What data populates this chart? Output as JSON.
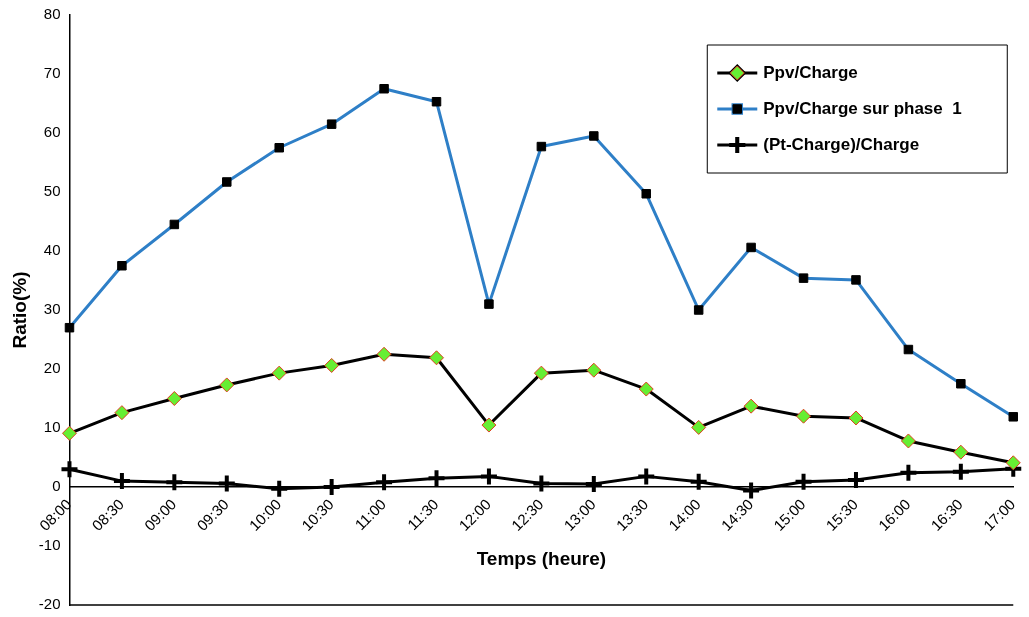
{
  "chart_data": {
    "type": "line",
    "xlabel": "Temps (heure)",
    "ylabel": "Ratio(%)",
    "categories": [
      "08:00",
      "08:30",
      "09:00",
      "09:30",
      "10:00",
      "10:30",
      "11:00",
      "11:30",
      "12:00",
      "12:30",
      "13:00",
      "13:30",
      "14:00",
      "14:30",
      "15:00",
      "15:30",
      "16:00",
      "16:30",
      "17:00"
    ],
    "series": [
      {
        "name": "Ppv/Charge",
        "color": "#66ee33",
        "marker": "diamond",
        "values": [
          9.1,
          12.6,
          15,
          17.3,
          19.3,
          20.6,
          22.5,
          21.9,
          10.5,
          19.3,
          19.8,
          16.6,
          10.1,
          13.7,
          12,
          11.7,
          7.8,
          5.9,
          4.1
        ]
      },
      {
        "name": "Ppv/Charge sur phase  1",
        "color": "#2e7fc7",
        "marker": "square",
        "values": [
          27,
          37.5,
          44.5,
          51.7,
          57.5,
          61.5,
          67.5,
          65.3,
          31,
          57.7,
          59.5,
          49.7,
          30,
          40.6,
          35.4,
          35.1,
          23.3,
          17.5,
          11.9
        ]
      },
      {
        "name": "(Pt-Charge)/Charge",
        "color": "#000000",
        "marker": "cross",
        "values": [
          3,
          1,
          0.8,
          0.6,
          -0.3,
          0,
          0.8,
          1.5,
          1.8,
          0.6,
          0.5,
          1.8,
          0.9,
          -0.6,
          0.9,
          1.2,
          2.4,
          2.6,
          3.1
        ]
      }
    ],
    "ylim": [
      -20,
      80
    ],
    "yticks": [
      -20,
      -10,
      0,
      10,
      20,
      30,
      40,
      50,
      60,
      70,
      80
    ],
    "grid": false,
    "legend": "top right"
  }
}
